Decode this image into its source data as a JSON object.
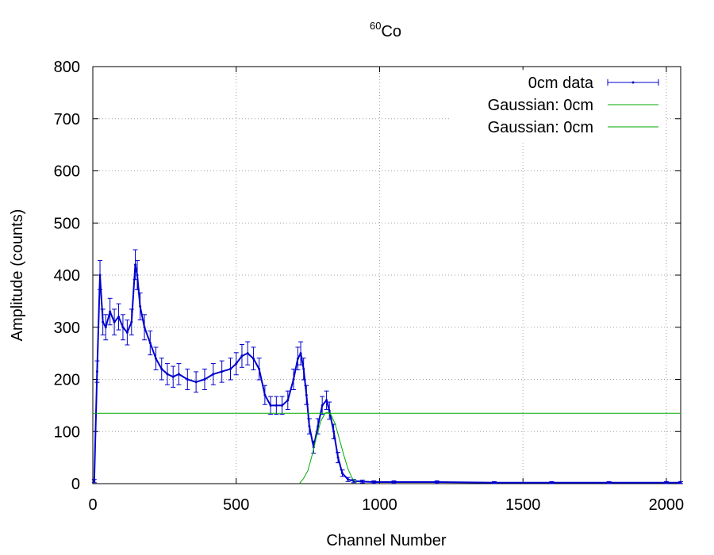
{
  "chart_data": {
    "type": "line",
    "title": {
      "superscript": "60",
      "main": "Co"
    },
    "xlabel": "Channel Number",
    "ylabel": "Amplitude (counts)",
    "xlim": [
      0,
      2050
    ],
    "ylim": [
      0,
      800
    ],
    "xticks": [
      0,
      500,
      1000,
      1500,
      2000
    ],
    "yticks": [
      0,
      100,
      200,
      300,
      400,
      500,
      600,
      700,
      800
    ],
    "grid": true,
    "legend_position": "top-right",
    "series": [
      {
        "name": "0cm data",
        "style": "points-with-errorbars",
        "color": "#0000cc",
        "x": [
          5,
          15,
          25,
          35,
          45,
          60,
          75,
          90,
          105,
          120,
          135,
          148,
          155,
          165,
          180,
          200,
          220,
          240,
          260,
          280,
          300,
          330,
          360,
          390,
          420,
          450,
          480,
          500,
          520,
          540,
          560,
          580,
          600,
          620,
          640,
          660,
          680,
          700,
          715,
          725,
          735,
          745,
          755,
          770,
          785,
          800,
          815,
          825,
          840,
          855,
          870,
          890,
          910,
          940,
          980,
          1050,
          1200,
          1400,
          1600,
          1800,
          2000,
          2050
        ],
        "y": [
          5,
          215,
          400,
          310,
          300,
          330,
          310,
          320,
          300,
          290,
          310,
          420,
          400,
          340,
          300,
          270,
          240,
          220,
          210,
          205,
          210,
          200,
          195,
          200,
          210,
          215,
          220,
          230,
          245,
          250,
          240,
          220,
          170,
          150,
          150,
          150,
          160,
          200,
          240,
          250,
          220,
          170,
          110,
          70,
          110,
          150,
          160,
          140,
          100,
          50,
          20,
          8,
          5,
          4,
          3,
          3,
          3,
          2,
          2,
          2,
          2,
          2
        ]
      },
      {
        "name": "Gaussian: 0cm",
        "style": "line",
        "color": "#00aa00",
        "x": [
          720,
          735,
          750,
          765,
          780,
          795,
          810,
          820,
          830,
          845,
          860,
          875,
          890,
          905,
          920
        ],
        "y": [
          0,
          10,
          25,
          55,
          90,
          120,
          135,
          137,
          133,
          115,
          85,
          55,
          28,
          10,
          2
        ]
      },
      {
        "name": "Gaussian: 0cm",
        "style": "line",
        "color": "#00aa00",
        "x": [
          0,
          2050
        ],
        "y": [
          135,
          135
        ]
      }
    ]
  }
}
